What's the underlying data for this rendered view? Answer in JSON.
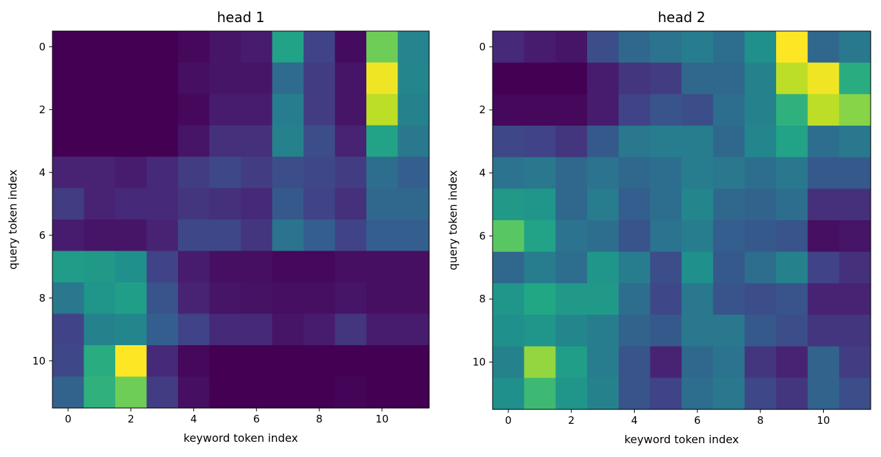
{
  "chart_data": [
    {
      "type": "heatmap",
      "title": "head 1",
      "xlabel": "keyword token index",
      "ylabel": "query token index",
      "colormap": "viridis",
      "value_range": [
        0,
        1
      ],
      "x_ticks": [
        0,
        2,
        4,
        6,
        8,
        10
      ],
      "y_ticks": [
        0,
        2,
        4,
        6,
        8,
        10
      ],
      "values": [
        [
          0.0,
          0.0,
          0.0,
          0.0,
          0.02,
          0.06,
          0.08,
          0.58,
          0.2,
          0.03,
          0.78,
          0.45
        ],
        [
          0.0,
          0.0,
          0.0,
          0.0,
          0.04,
          0.06,
          0.06,
          0.35,
          0.18,
          0.06,
          0.98,
          0.46
        ],
        [
          0.0,
          0.0,
          0.0,
          0.0,
          0.02,
          0.08,
          0.08,
          0.42,
          0.18,
          0.06,
          0.9,
          0.44
        ],
        [
          0.0,
          0.0,
          0.0,
          0.0,
          0.06,
          0.14,
          0.14,
          0.44,
          0.24,
          0.1,
          0.58,
          0.4
        ],
        [
          0.1,
          0.1,
          0.08,
          0.12,
          0.18,
          0.22,
          0.18,
          0.24,
          0.22,
          0.18,
          0.36,
          0.3
        ],
        [
          0.18,
          0.1,
          0.12,
          0.12,
          0.16,
          0.14,
          0.12,
          0.28,
          0.2,
          0.14,
          0.34,
          0.34
        ],
        [
          0.08,
          0.06,
          0.06,
          0.1,
          0.22,
          0.22,
          0.16,
          0.38,
          0.3,
          0.2,
          0.3,
          0.3
        ],
        [
          0.55,
          0.54,
          0.5,
          0.2,
          0.08,
          0.04,
          0.04,
          0.02,
          0.02,
          0.04,
          0.04,
          0.04
        ],
        [
          0.4,
          0.52,
          0.56,
          0.26,
          0.1,
          0.06,
          0.05,
          0.04,
          0.04,
          0.06,
          0.04,
          0.04
        ],
        [
          0.2,
          0.44,
          0.46,
          0.3,
          0.2,
          0.12,
          0.12,
          0.06,
          0.08,
          0.16,
          0.08,
          0.08
        ],
        [
          0.22,
          0.62,
          1.0,
          0.12,
          0.02,
          0.0,
          0.0,
          0.0,
          0.0,
          0.0,
          0.0,
          0.0
        ],
        [
          0.32,
          0.64,
          0.78,
          0.18,
          0.04,
          0.0,
          0.0,
          0.0,
          0.0,
          0.01,
          0.0,
          0.0
        ]
      ]
    },
    {
      "type": "heatmap",
      "title": "head 2",
      "xlabel": "keyword token index",
      "ylabel": "query token index",
      "colormap": "viridis",
      "value_range": [
        0,
        1
      ],
      "x_ticks": [
        0,
        2,
        4,
        6,
        8,
        10
      ],
      "y_ticks": [
        0,
        2,
        4,
        6,
        8,
        10
      ],
      "values": [
        [
          0.12,
          0.08,
          0.06,
          0.24,
          0.34,
          0.38,
          0.42,
          0.36,
          0.5,
          1.0,
          0.34,
          0.4
        ],
        [
          0.0,
          0.0,
          0.0,
          0.08,
          0.16,
          0.18,
          0.34,
          0.34,
          0.44,
          0.9,
          0.98,
          0.62
        ],
        [
          0.02,
          0.02,
          0.02,
          0.08,
          0.2,
          0.26,
          0.24,
          0.36,
          0.44,
          0.64,
          0.9,
          0.82
        ],
        [
          0.22,
          0.2,
          0.16,
          0.28,
          0.4,
          0.42,
          0.42,
          0.34,
          0.46,
          0.58,
          0.36,
          0.4
        ],
        [
          0.38,
          0.4,
          0.34,
          0.38,
          0.34,
          0.36,
          0.42,
          0.4,
          0.36,
          0.4,
          0.28,
          0.28
        ],
        [
          0.54,
          0.52,
          0.34,
          0.42,
          0.3,
          0.36,
          0.46,
          0.34,
          0.32,
          0.36,
          0.14,
          0.14
        ],
        [
          0.74,
          0.58,
          0.38,
          0.36,
          0.26,
          0.38,
          0.42,
          0.3,
          0.28,
          0.26,
          0.04,
          0.06
        ],
        [
          0.34,
          0.42,
          0.36,
          0.52,
          0.42,
          0.24,
          0.5,
          0.28,
          0.36,
          0.44,
          0.2,
          0.14
        ],
        [
          0.52,
          0.6,
          0.54,
          0.54,
          0.36,
          0.22,
          0.4,
          0.26,
          0.24,
          0.26,
          0.1,
          0.1
        ],
        [
          0.5,
          0.52,
          0.46,
          0.42,
          0.32,
          0.28,
          0.4,
          0.4,
          0.28,
          0.24,
          0.16,
          0.16
        ],
        [
          0.44,
          0.84,
          0.56,
          0.42,
          0.26,
          0.1,
          0.34,
          0.38,
          0.16,
          0.1,
          0.32,
          0.18
        ],
        [
          0.5,
          0.68,
          0.52,
          0.44,
          0.26,
          0.2,
          0.36,
          0.4,
          0.22,
          0.16,
          0.32,
          0.24
        ]
      ]
    }
  ]
}
